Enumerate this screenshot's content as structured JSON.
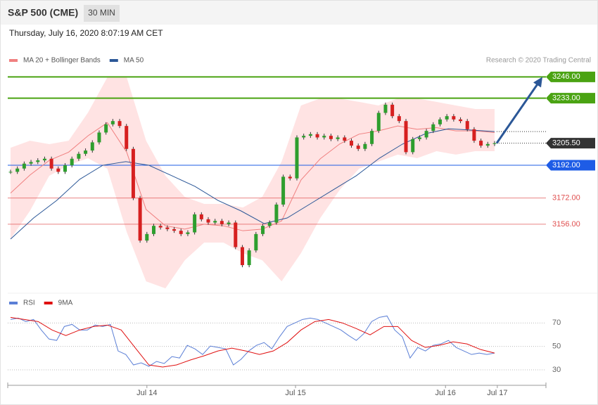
{
  "header": {
    "title": "S&P 500 (CME)",
    "interval": "30 MIN",
    "timestamp": "Thursday, July 16, 2020 8:07:19 AM CET"
  },
  "chart_data": [
    {
      "type": "candlestick",
      "credit": "Research © 2020 Trading Central",
      "up_color": "#2e9e2e",
      "down_color": "#d62020",
      "closes": [
        3188,
        3190,
        3193,
        3194,
        3195,
        3196,
        3190,
        3188,
        3192,
        3196,
        3199,
        3201,
        3206,
        3212,
        3217,
        3219,
        3216,
        3202,
        3172,
        3146,
        3150,
        3155,
        3154,
        3153,
        3152,
        3150,
        3151,
        3162,
        3159,
        3157,
        3158,
        3156,
        3157,
        3142,
        3131,
        3140,
        3150,
        3155,
        3157,
        3168,
        3185,
        3184,
        3209,
        3210,
        3211,
        3209,
        3210,
        3208,
        3209,
        3207,
        3204,
        3202,
        3205,
        3213,
        3224,
        3229,
        3222,
        3219,
        3200,
        3208,
        3209,
        3213,
        3217,
        3220,
        3222,
        3220,
        3219,
        3214,
        3207,
        3204,
        3205,
        3205.5
      ],
      "series": [
        {
          "name": "MA 20 + Bollinger Bands",
          "color": "#f08080",
          "band_color": "#ffe3e3",
          "values": [
            3175,
            3186,
            3195,
            3200,
            3210,
            3218,
            3200,
            3165,
            3155,
            3153,
            3156,
            3155,
            3152,
            3153,
            3158,
            3183,
            3196,
            3205,
            3211,
            3213,
            3216,
            3214,
            3215,
            3213,
            3213,
            3212
          ],
          "upper": [
            3202.7,
            3207,
            3204.9,
            3207,
            3224.2,
            3245.7,
            3245.7,
            3207,
            3185.6,
            3172.7,
            3168.4,
            3168.4,
            3166.2,
            3172.7,
            3194.2,
            3228.5,
            3232.8,
            3232.8,
            3230.7,
            3228.5,
            3232.8,
            3232.8,
            3230.7,
            3228.5,
            3226.4,
            3226.4
          ],
          "lower": [
            3146.9,
            3164.1,
            3185.6,
            3192,
            3196.3,
            3189.9,
            3151.2,
            3121.1,
            3116.8,
            3134,
            3144.8,
            3144.8,
            3138.3,
            3134,
            3121.1,
            3138.3,
            3159.8,
            3177,
            3189.9,
            3194.2,
            3198.5,
            3196.3,
            3200.6,
            3198.5,
            3200.6,
            3200.6
          ]
        },
        {
          "name": "MA 50",
          "color": "#2b5797",
          "values": [
            3146.9,
            3159.8,
            3170.5,
            3183.4,
            3192,
            3194.2,
            3192,
            3185.6,
            3179.1,
            3170.5,
            3164.1,
            3156.4,
            3159.8,
            3168.4,
            3177,
            3185.6,
            3196.3,
            3204.9,
            3211.3,
            3214.3,
            3213.5,
            3212.6
          ]
        }
      ],
      "levels": [
        {
          "value": 3246,
          "label": "3246.00",
          "color": "#4aa312",
          "style": "solid"
        },
        {
          "value": 3233,
          "label": "3233.00",
          "color": "#4aa312",
          "style": "solid"
        },
        {
          "value": 3205.5,
          "label": "3205.50",
          "color": "#333333",
          "style": "dotted"
        },
        {
          "value": 3192,
          "label": "3192.00",
          "color": "#1e5ce6",
          "style": "solid"
        },
        {
          "value": 3172,
          "label": "3172.00",
          "color": "#e05050",
          "style": "text"
        },
        {
          "value": 3156,
          "label": "3156.00",
          "color": "#e05050",
          "style": "text"
        }
      ],
      "arrow_color": "#2b5797",
      "ylim": [
        3116,
        3250
      ]
    },
    {
      "type": "line",
      "series": [
        {
          "name": "RSI",
          "color": "#5b7fd6",
          "values": [
            73,
            74.2,
            71.2,
            73,
            64,
            56.3,
            55.1,
            67,
            68.8,
            64,
            64,
            68.2,
            67,
            68.8,
            46.1,
            43.1,
            34.2,
            36,
            33,
            37.2,
            35.4,
            41.3,
            40.1,
            50.9,
            47.9,
            43.1,
            50.3,
            49.1,
            47.9,
            34.2,
            39,
            46.1,
            50.9,
            53.3,
            47.9,
            58.1,
            67,
            70,
            73,
            74.2,
            73,
            70,
            67,
            64,
            59.3,
            55.1,
            61,
            71.2,
            74.8,
            76,
            64,
            58.1,
            40.1,
            49.1,
            46.1,
            50.9,
            52.1,
            55.1,
            49.1,
            46.1,
            43.1,
            44.3,
            43.1,
            44.3
          ]
        },
        {
          "name": "9MA",
          "color": "#e01010",
          "values": [
            74.8,
            73,
            71.2,
            64,
            59.3,
            64,
            67,
            68.2,
            64,
            49,
            34.2,
            32.4,
            34.2,
            38.4,
            42,
            46.1,
            48.5,
            46.1,
            43.1,
            46.1,
            53.3,
            64,
            71.2,
            73,
            70,
            65.2,
            59.9,
            67,
            67,
            55.1,
            49.1,
            50.9,
            53.9,
            52.1,
            47.3,
            44.3
          ]
        }
      ],
      "ylim": [
        18,
        84
      ],
      "yticks": [
        30,
        50,
        70
      ],
      "xticks": [
        {
          "value": 20,
          "label": "Jul 14"
        },
        {
          "value": 41.8,
          "label": "Jul 15"
        },
        {
          "value": 63.8,
          "label": "Jul 16"
        },
        {
          "value": 71.4,
          "label": "Jul 17"
        }
      ]
    }
  ]
}
